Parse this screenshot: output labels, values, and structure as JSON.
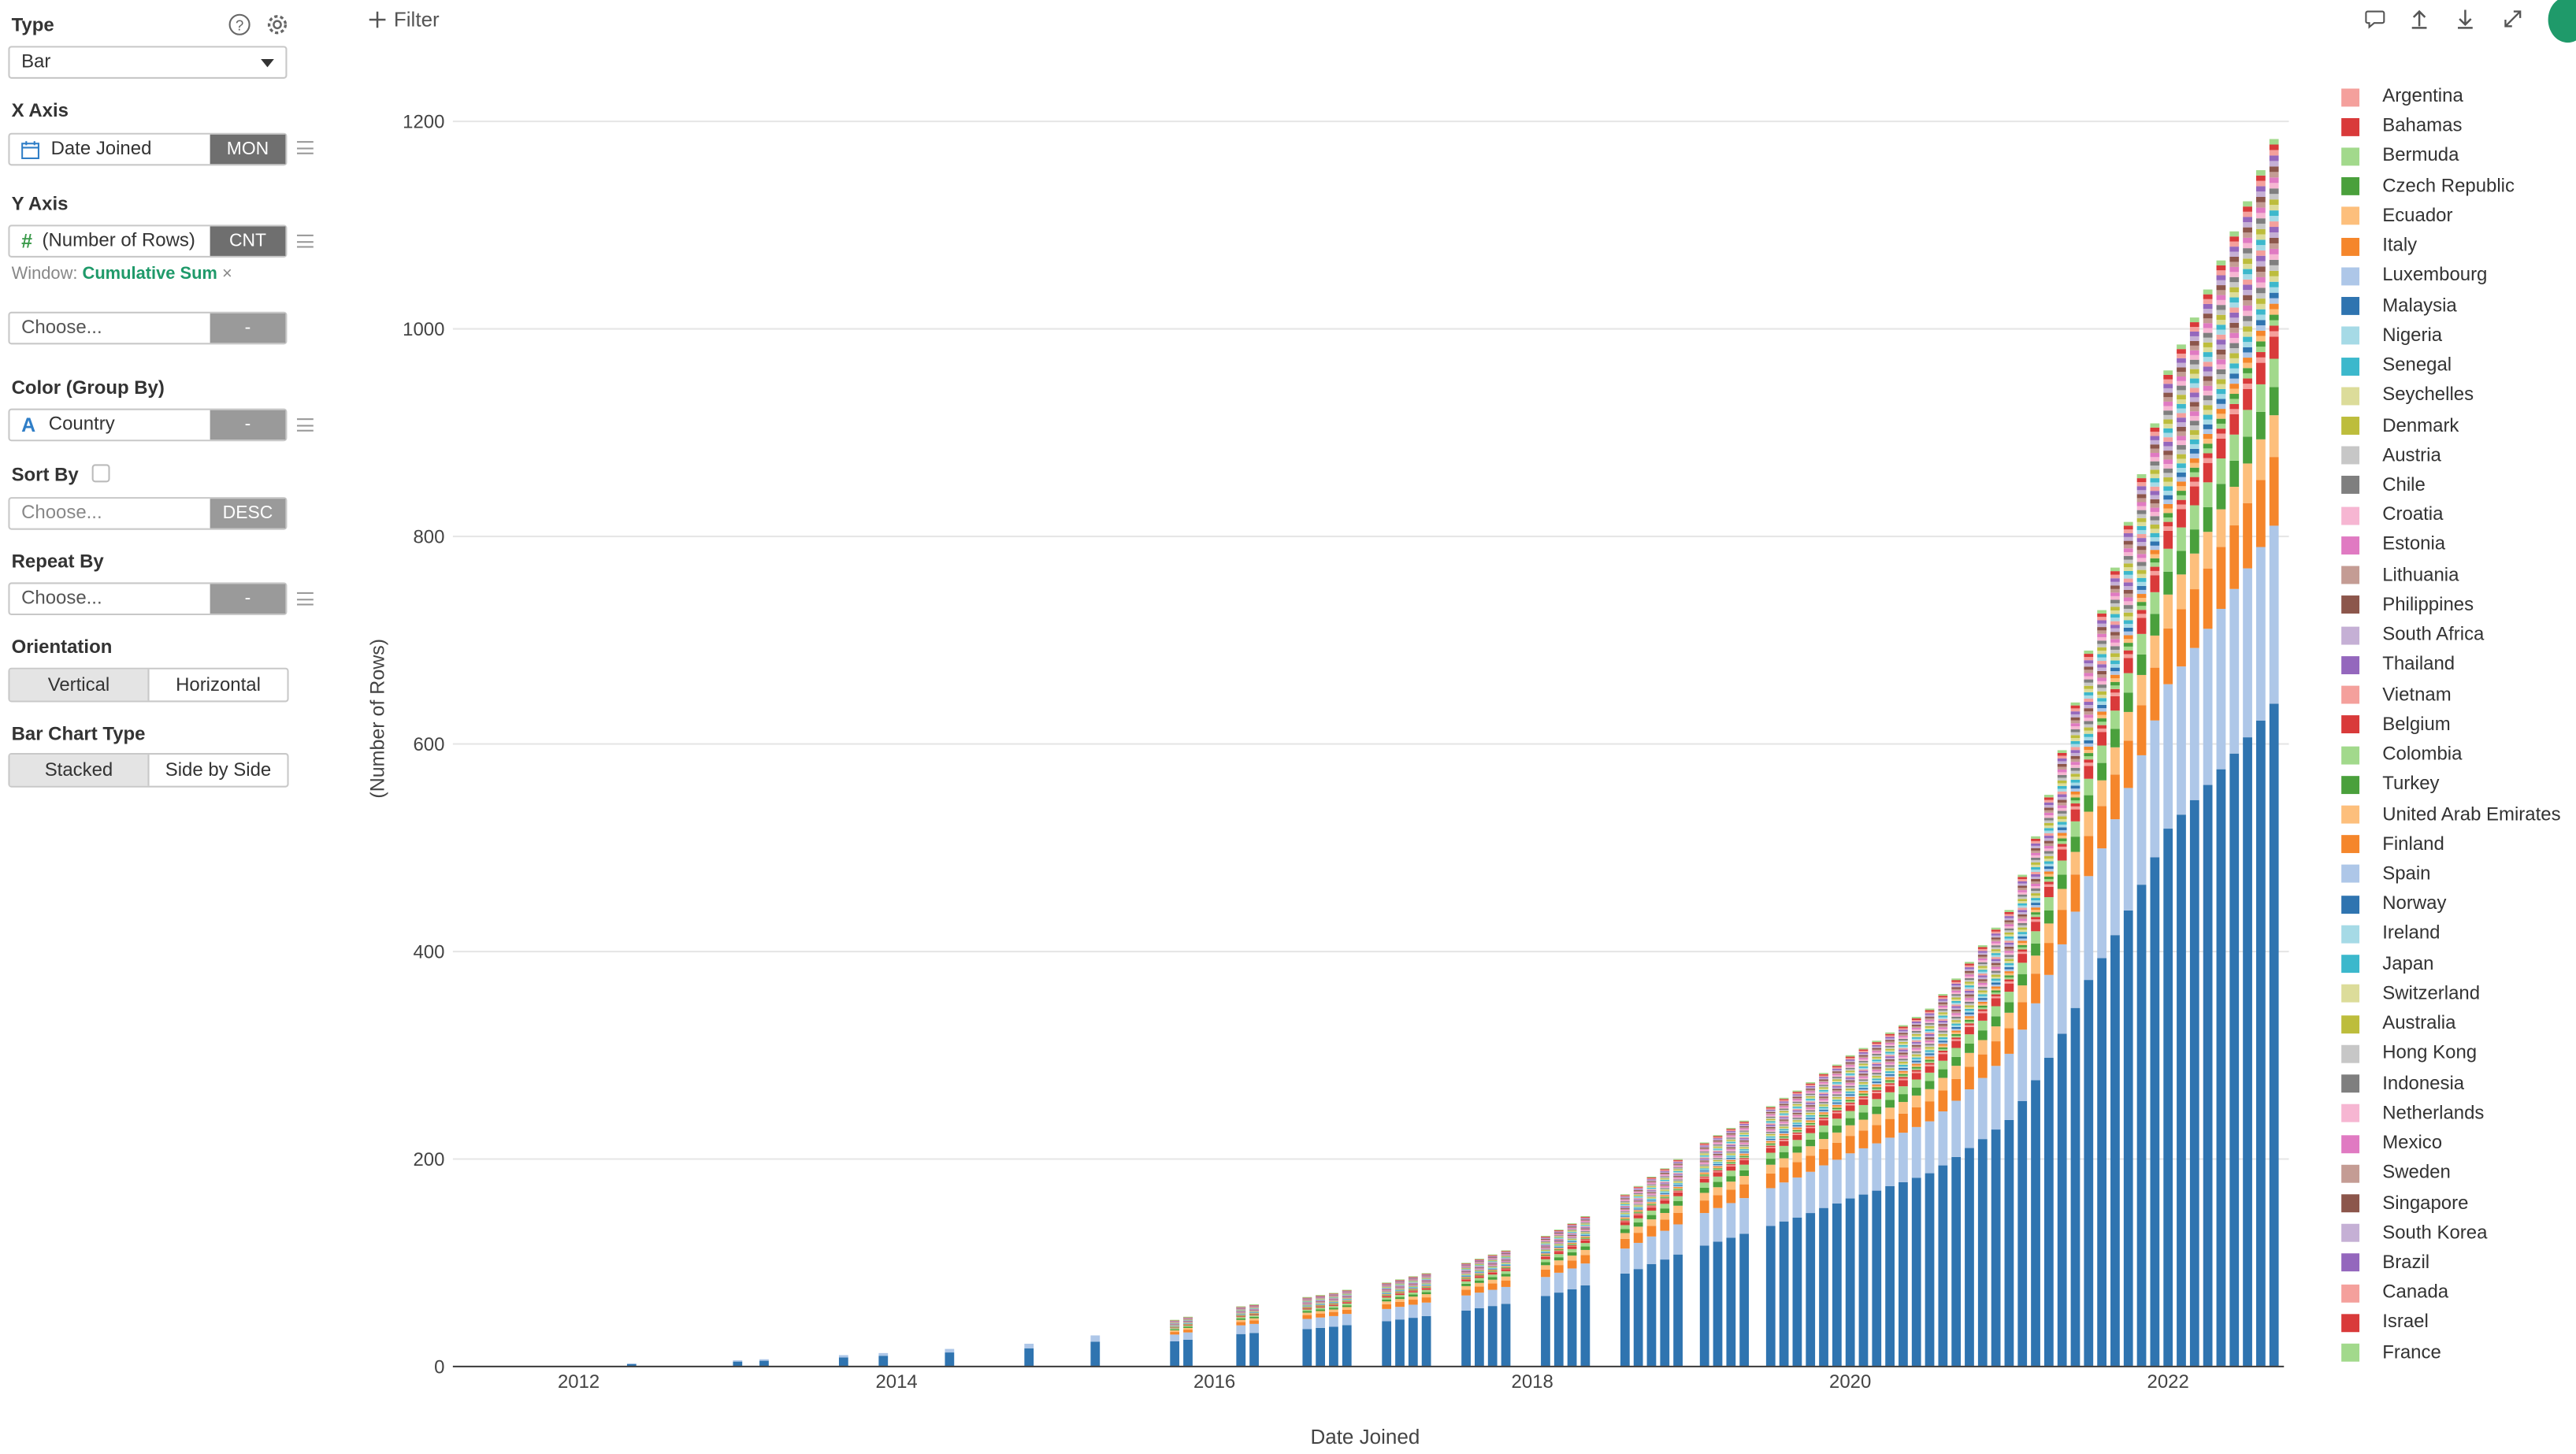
{
  "sidebar": {
    "type_label": "Type",
    "type_value": "Bar",
    "xaxis_label": "X Axis",
    "xaxis_value": "Date Joined",
    "xaxis_tag": "MON",
    "yaxis_label": "Y Axis",
    "yaxis_value": "(Number of Rows)",
    "yaxis_tag": "CNT",
    "window_prefix": "Window:",
    "window_value": "Cumulative Sum",
    "window_close": "×",
    "choose_placeholder": "Choose...",
    "dash": "-",
    "color_label": "Color (Group By)",
    "color_value": "Country",
    "sort_label": "Sort By",
    "sort_placeholder": "Choose...",
    "sort_tag": "DESC",
    "repeat_label": "Repeat By",
    "repeat_placeholder": "Choose...",
    "orientation_label": "Orientation",
    "orientation_options": [
      "Vertical",
      "Horizontal"
    ],
    "barchart_label": "Bar Chart Type",
    "barchart_options": [
      "Stacked",
      "Side by Side"
    ]
  },
  "toolbar": {
    "filter_label": "Filter",
    "icons": [
      "comment-icon",
      "upload-icon",
      "download-icon",
      "expand-icon"
    ]
  },
  "chart_data": {
    "type": "bar",
    "stacked": true,
    "xlabel": "Date Joined",
    "ylabel": "(Number of Rows)",
    "ylim": [
      0,
      1200
    ],
    "yticks": [
      0,
      200,
      400,
      600,
      800,
      1000,
      1200
    ],
    "xticks": [
      "2012",
      "2014",
      "2016",
      "2018",
      "2020",
      "2022"
    ],
    "x_start": "2011-04",
    "x_end": "2022-09",
    "grid": true,
    "legend_position": "right",
    "samples": [
      {
        "month": "2012-01",
        "total": 2
      },
      {
        "month": "2013-01",
        "total": 6
      },
      {
        "month": "2014-01",
        "total": 14
      },
      {
        "month": "2015-01",
        "total": 24
      },
      {
        "month": "2016-01",
        "total": 55
      },
      {
        "month": "2017-01",
        "total": 78
      },
      {
        "month": "2018-01",
        "total": 120
      },
      {
        "month": "2019-01",
        "total": 210
      },
      {
        "month": "2020-01",
        "total": 300
      },
      {
        "month": "2020-07",
        "total": 345
      },
      {
        "month": "2021-01",
        "total": 440
      },
      {
        "month": "2021-07",
        "total": 690
      },
      {
        "month": "2022-01",
        "total": 960
      },
      {
        "month": "2022-09",
        "total": 1183
      }
    ],
    "top_series_shares": [
      {
        "name": "Norway",
        "share": 0.54
      },
      {
        "name": "Spain",
        "share": 0.145
      },
      {
        "name": "Finland",
        "share": 0.056
      },
      {
        "name": "United Arab Emirates",
        "share": 0.034
      },
      {
        "name": "Turkey",
        "share": 0.023
      },
      {
        "name": "Colombia",
        "share": 0.023
      },
      {
        "name": "Belgium",
        "share": 0.018
      }
    ],
    "legend": [
      {
        "name": "Argentina",
        "color": "#f4a09c"
      },
      {
        "name": "Bahamas",
        "color": "#d93a3a"
      },
      {
        "name": "Bermuda",
        "color": "#a2d98c"
      },
      {
        "name": "Czech Republic",
        "color": "#4aa03c"
      },
      {
        "name": "Ecuador",
        "color": "#fdbf7c"
      },
      {
        "name": "Italy",
        "color": "#f5862b"
      },
      {
        "name": "Luxembourg",
        "color": "#aec7e8"
      },
      {
        "name": "Malaysia",
        "color": "#2f74b0"
      },
      {
        "name": "Nigeria",
        "color": "#a6dae6"
      },
      {
        "name": "Senegal",
        "color": "#3cb8cc"
      },
      {
        "name": "Seychelles",
        "color": "#dcdc9a"
      },
      {
        "name": "Denmark",
        "color": "#bdbd3c"
      },
      {
        "name": "Austria",
        "color": "#c7c7c7"
      },
      {
        "name": "Chile",
        "color": "#7f7f7f"
      },
      {
        "name": "Croatia",
        "color": "#f6b6d2"
      },
      {
        "name": "Estonia",
        "color": "#e07ac2"
      },
      {
        "name": "Lithuania",
        "color": "#c49c94"
      },
      {
        "name": "Philippines",
        "color": "#8c564b"
      },
      {
        "name": "South Africa",
        "color": "#c5b0d5"
      },
      {
        "name": "Thailand",
        "color": "#9467bd"
      },
      {
        "name": "Vietnam",
        "color": "#f4a09c"
      },
      {
        "name": "Belgium",
        "color": "#d93a3a"
      },
      {
        "name": "Colombia",
        "color": "#a2d98c"
      },
      {
        "name": "Turkey",
        "color": "#4aa03c"
      },
      {
        "name": "United Arab Emirates",
        "color": "#fdbf7c"
      },
      {
        "name": "Finland",
        "color": "#f5862b"
      },
      {
        "name": "Spain",
        "color": "#aec7e8"
      },
      {
        "name": "Norway",
        "color": "#2f74b0"
      },
      {
        "name": "Ireland",
        "color": "#a6dae6"
      },
      {
        "name": "Japan",
        "color": "#3cb8cc"
      },
      {
        "name": "Switzerland",
        "color": "#dcdc9a"
      },
      {
        "name": "Australia",
        "color": "#bdbd3c"
      },
      {
        "name": "Hong Kong",
        "color": "#c7c7c7"
      },
      {
        "name": "Indonesia",
        "color": "#7f7f7f"
      },
      {
        "name": "Netherlands",
        "color": "#f6b6d2"
      },
      {
        "name": "Mexico",
        "color": "#e07ac2"
      },
      {
        "name": "Sweden",
        "color": "#c49c94"
      },
      {
        "name": "Singapore",
        "color": "#8c564b"
      },
      {
        "name": "South Korea",
        "color": "#c5b0d5"
      },
      {
        "name": "Brazil",
        "color": "#9467bd"
      },
      {
        "name": "Canada",
        "color": "#f4a09c"
      },
      {
        "name": "Israel",
        "color": "#d93a3a"
      },
      {
        "name": "France",
        "color": "#a2d98c"
      }
    ]
  }
}
